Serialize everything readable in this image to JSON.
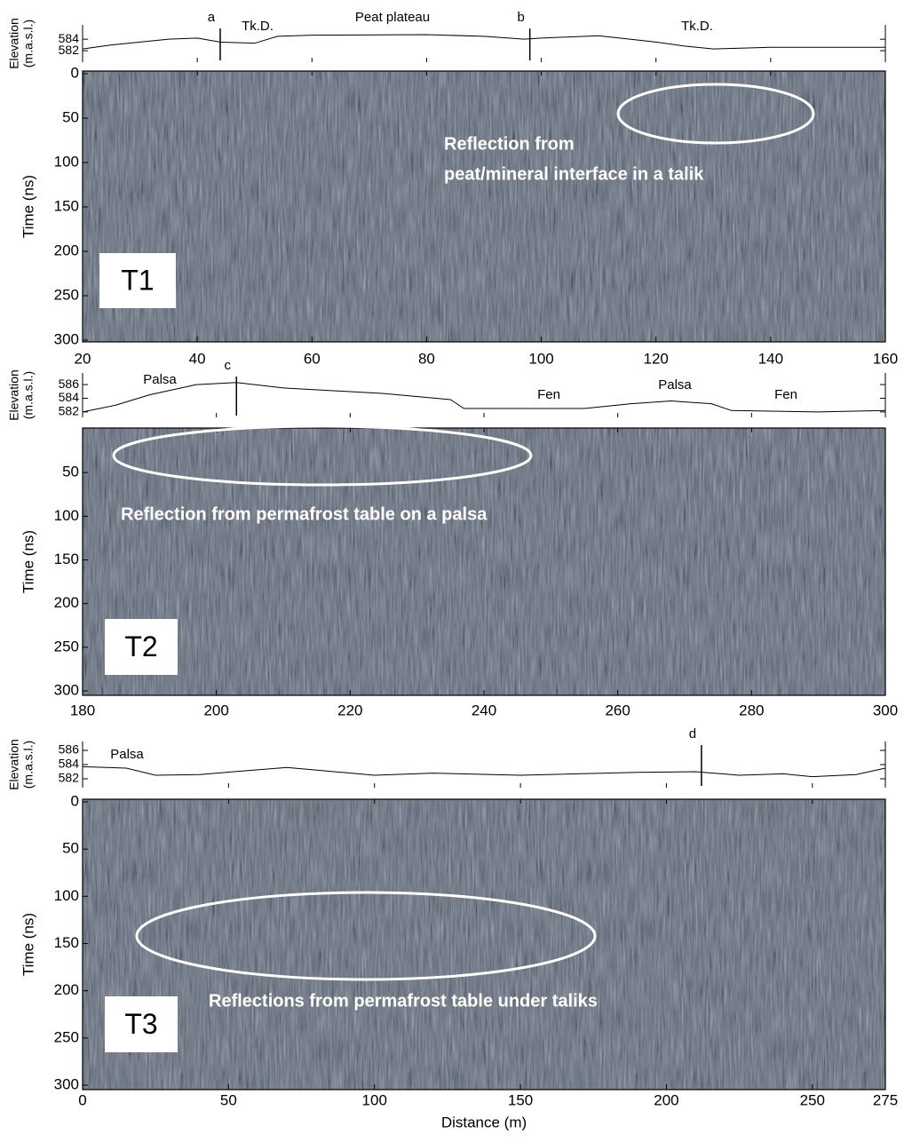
{
  "chart_data": [
    {
      "type": "radargram",
      "panel_label": "T1",
      "xlim": [
        20,
        160
      ],
      "xticks": [
        20,
        40,
        60,
        80,
        100,
        120,
        140,
        160
      ],
      "ylabel": "Time (ns)",
      "ylim": [
        0,
        300
      ],
      "yticks": [
        0,
        50,
        100,
        150,
        200,
        250,
        300
      ],
      "elevation": {
        "ylabel": [
          "Elevation",
          "(m.a.s.l.)"
        ],
        "ylim": [
          580,
          586.5
        ],
        "yticks": [
          582,
          584
        ],
        "x": [
          20,
          25,
          30,
          35,
          40,
          44,
          50,
          54,
          60,
          80,
          90,
          97,
          100,
          110,
          120,
          125,
          130,
          140,
          150,
          160
        ],
        "values": [
          582.3,
          583,
          583.5,
          584,
          584.2,
          583.5,
          583.3,
          584.5,
          584.7,
          584.8,
          584.5,
          584,
          584.2,
          584.6,
          583.5,
          582.8,
          582.3,
          582.6,
          582.6,
          582.6
        ]
      },
      "markers": [
        {
          "label": "a",
          "x": 44
        },
        {
          "label": "b",
          "x": 98
        }
      ],
      "site_labels": [
        "Tk.D.",
        "Peat plateau",
        "Tk.D."
      ],
      "annotation": [
        "Reflection from",
        "peat/mineral interface in a talik"
      ]
    },
    {
      "type": "radargram",
      "panel_label": "T2",
      "xlim": [
        180,
        300
      ],
      "xticks": [
        180,
        200,
        220,
        240,
        260,
        280,
        300
      ],
      "ylabel": "Time (ns)",
      "ylim": [
        0,
        300
      ],
      "yticks": [
        50,
        100,
        150,
        200,
        250,
        300
      ],
      "elevation": {
        "ylabel": [
          "Elevation",
          "(m.a.s.l.)"
        ],
        "ylim": [
          581.2,
          587.7
        ],
        "yticks": [
          582,
          584,
          586
        ],
        "x": [
          180,
          185,
          190,
          197,
          203,
          210,
          225,
          235,
          237,
          255,
          262,
          268,
          274,
          277,
          290,
          300
        ],
        "values": [
          582,
          583,
          584.5,
          586,
          586.3,
          585.5,
          584.7,
          583.8,
          582.5,
          582.5,
          583.2,
          583.6,
          583.2,
          582.2,
          582,
          582.2
        ]
      },
      "markers": [
        {
          "label": "c",
          "x": 203
        }
      ],
      "site_labels": [
        "Palsa",
        "Fen",
        "Palsa",
        "Fen"
      ],
      "annotation": [
        "Reflection from permafrost table on a palsa"
      ]
    },
    {
      "type": "radargram",
      "panel_label": "T3",
      "xlim": [
        0,
        275
      ],
      "xticks": [
        0,
        50,
        100,
        150,
        200,
        250,
        275
      ],
      "xlabel": "Distance (m)",
      "ylabel": "Time (ns)",
      "ylim": [
        0,
        300
      ],
      "yticks": [
        0,
        50,
        100,
        150,
        200,
        250,
        300
      ],
      "elevation": {
        "ylabel": [
          "Elevation",
          "(m.a.s.l.)"
        ],
        "ylim": [
          580.75,
          587.25
        ],
        "yticks": [
          582,
          584,
          586
        ],
        "x": [
          0,
          15,
          25,
          40,
          70,
          100,
          120,
          150,
          190,
          210,
          225,
          240,
          250,
          265,
          275
        ],
        "values": [
          583.7,
          583.5,
          582.5,
          582.6,
          583.6,
          582.5,
          582.8,
          582.5,
          582.9,
          583,
          582.5,
          582.7,
          582.3,
          582.6,
          583.5
        ]
      },
      "markers": [
        {
          "label": "d",
          "x": 212
        }
      ],
      "site_labels": [
        "Palsa"
      ],
      "annotation": [
        "Reflections from permafrost table under taliks"
      ]
    }
  ]
}
